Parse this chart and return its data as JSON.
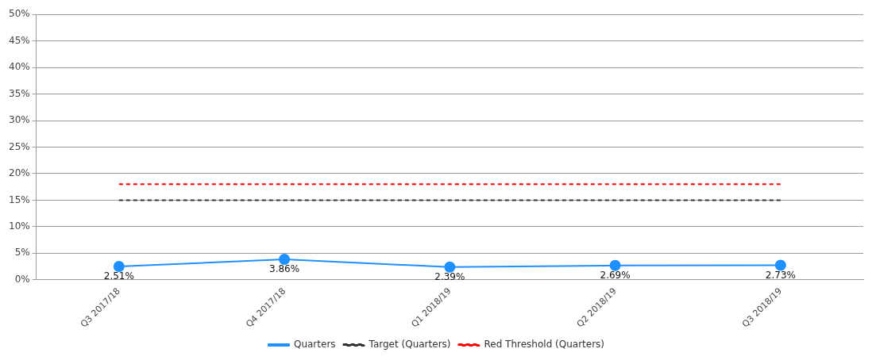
{
  "chart_data": {
    "type": "line",
    "categories": [
      "Q3 2017/18",
      "Q4 2017/18",
      "Q1 2018/19",
      "Q2 2018/19",
      "Q3 2018/19"
    ],
    "series": [
      {
        "name": "Quarters",
        "color": "#1e90ff",
        "values": [
          2.51,
          3.86,
          2.39,
          2.69,
          2.73
        ],
        "marker": "circle",
        "line_style": "solid",
        "value_labels": [
          "2.51%",
          "3.86%",
          "2.39%",
          "2.69%",
          "2.73%"
        ]
      },
      {
        "name": "Target (Quarters)",
        "color": "#333333",
        "values": [
          15,
          15,
          15,
          15,
          15
        ],
        "marker": "none",
        "line_style": "dashed"
      },
      {
        "name": "Red Threshold (Quarters)",
        "color": "#ff0000",
        "values": [
          18,
          18,
          18,
          18,
          18
        ],
        "marker": "none",
        "line_style": "dashed"
      }
    ],
    "ylim": [
      0,
      50
    ],
    "yticks": [
      {
        "value": 0,
        "label": "0%"
      },
      {
        "value": 5,
        "label": "5%"
      },
      {
        "value": 10,
        "label": "10%"
      },
      {
        "value": 15,
        "label": "15%"
      },
      {
        "value": 20,
        "label": "20%"
      },
      {
        "value": 25,
        "label": "25%"
      },
      {
        "value": 30,
        "label": "30%"
      },
      {
        "value": 35,
        "label": "35%"
      },
      {
        "value": 40,
        "label": "40%"
      },
      {
        "value": 45,
        "label": "45%"
      },
      {
        "value": 50,
        "label": "50%"
      }
    ],
    "grid": "y",
    "legend": "bottom"
  }
}
